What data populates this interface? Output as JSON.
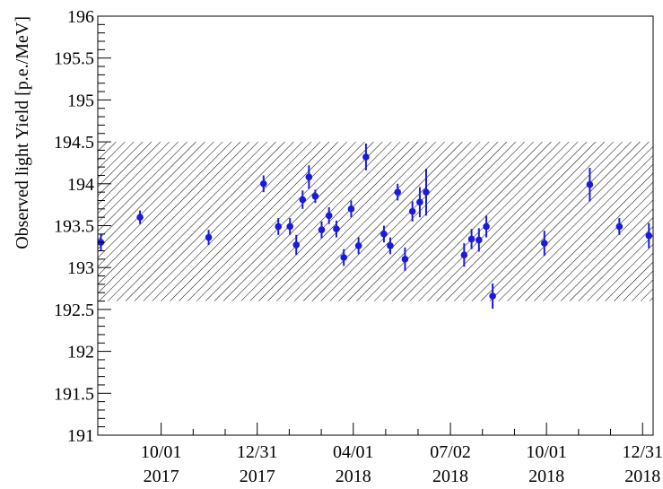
{
  "chart_data": {
    "type": "scatter",
    "title": "",
    "ylabel": "Observed light Yield [p.e./MeV]",
    "xlabel": "",
    "ylim": [
      191,
      196
    ],
    "y_ticks": [
      "191",
      "191.5",
      "192",
      "192.5",
      "193",
      "193.5",
      "194",
      "194.5",
      "195",
      "195.5",
      "196"
    ],
    "x_ticks": [
      {
        "date": "2017-10-01",
        "line1": "10/01",
        "line2": "2017"
      },
      {
        "date": "2017-12-31",
        "line1": "12/31",
        "line2": "2017"
      },
      {
        "date": "2018-04-01",
        "line1": "04/01",
        "line2": "2018"
      },
      {
        "date": "2018-07-02",
        "line1": "07/02",
        "line2": "2018"
      },
      {
        "date": "2018-10-01",
        "line1": "10/01",
        "line2": "2018"
      },
      {
        "date": "2018-12-31",
        "line1": "12/31",
        "line2": "2018"
      }
    ],
    "xlim": [
      "2017-08-02",
      "2019-01-10"
    ],
    "band": {
      "low": 192.6,
      "high": 194.5,
      "style": "hatched"
    },
    "series_color": "#1a1adf",
    "points": [
      {
        "x": "2017-08-05",
        "y": 193.3,
        "err": 0.1
      },
      {
        "x": "2017-09-11",
        "y": 193.6,
        "err": 0.08
      },
      {
        "x": "2017-11-15",
        "y": 193.36,
        "err": 0.09
      },
      {
        "x": "2018-01-06",
        "y": 194.0,
        "err": 0.1
      },
      {
        "x": "2018-01-20",
        "y": 193.49,
        "err": 0.1
      },
      {
        "x": "2018-01-31",
        "y": 193.49,
        "err": 0.1
      },
      {
        "x": "2018-02-06",
        "y": 193.27,
        "err": 0.12
      },
      {
        "x": "2018-02-12",
        "y": 193.81,
        "err": 0.11
      },
      {
        "x": "2018-02-18",
        "y": 194.08,
        "err": 0.14
      },
      {
        "x": "2018-02-24",
        "y": 193.85,
        "err": 0.08
      },
      {
        "x": "2018-03-02",
        "y": 193.45,
        "err": 0.1
      },
      {
        "x": "2018-03-09",
        "y": 193.62,
        "err": 0.1
      },
      {
        "x": "2018-03-16",
        "y": 193.46,
        "err": 0.1
      },
      {
        "x": "2018-03-23",
        "y": 193.12,
        "err": 0.1
      },
      {
        "x": "2018-03-30",
        "y": 193.7,
        "err": 0.1
      },
      {
        "x": "2018-04-06",
        "y": 193.26,
        "err": 0.1
      },
      {
        "x": "2018-04-13",
        "y": 194.32,
        "err": 0.16
      },
      {
        "x": "2018-04-30",
        "y": 193.4,
        "err": 0.1
      },
      {
        "x": "2018-05-06",
        "y": 193.26,
        "err": 0.1
      },
      {
        "x": "2018-05-13",
        "y": 193.9,
        "err": 0.1
      },
      {
        "x": "2018-05-20",
        "y": 193.1,
        "err": 0.14
      },
      {
        "x": "2018-05-27",
        "y": 193.67,
        "err": 0.12
      },
      {
        "x": "2018-06-03",
        "y": 193.78,
        "err": 0.18
      },
      {
        "x": "2018-06-09",
        "y": 193.9,
        "err": 0.28
      },
      {
        "x": "2018-07-15",
        "y": 193.15,
        "err": 0.14
      },
      {
        "x": "2018-07-22",
        "y": 193.34,
        "err": 0.12
      },
      {
        "x": "2018-07-29",
        "y": 193.33,
        "err": 0.14
      },
      {
        "x": "2018-08-05",
        "y": 193.49,
        "err": 0.13
      },
      {
        "x": "2018-08-11",
        "y": 192.66,
        "err": 0.15
      },
      {
        "x": "2018-09-29",
        "y": 193.29,
        "err": 0.15
      },
      {
        "x": "2018-11-11",
        "y": 193.99,
        "err": 0.2
      },
      {
        "x": "2018-12-09",
        "y": 193.49,
        "err": 0.1
      },
      {
        "x": "2019-01-06",
        "y": 193.38,
        "err": 0.15
      }
    ]
  }
}
